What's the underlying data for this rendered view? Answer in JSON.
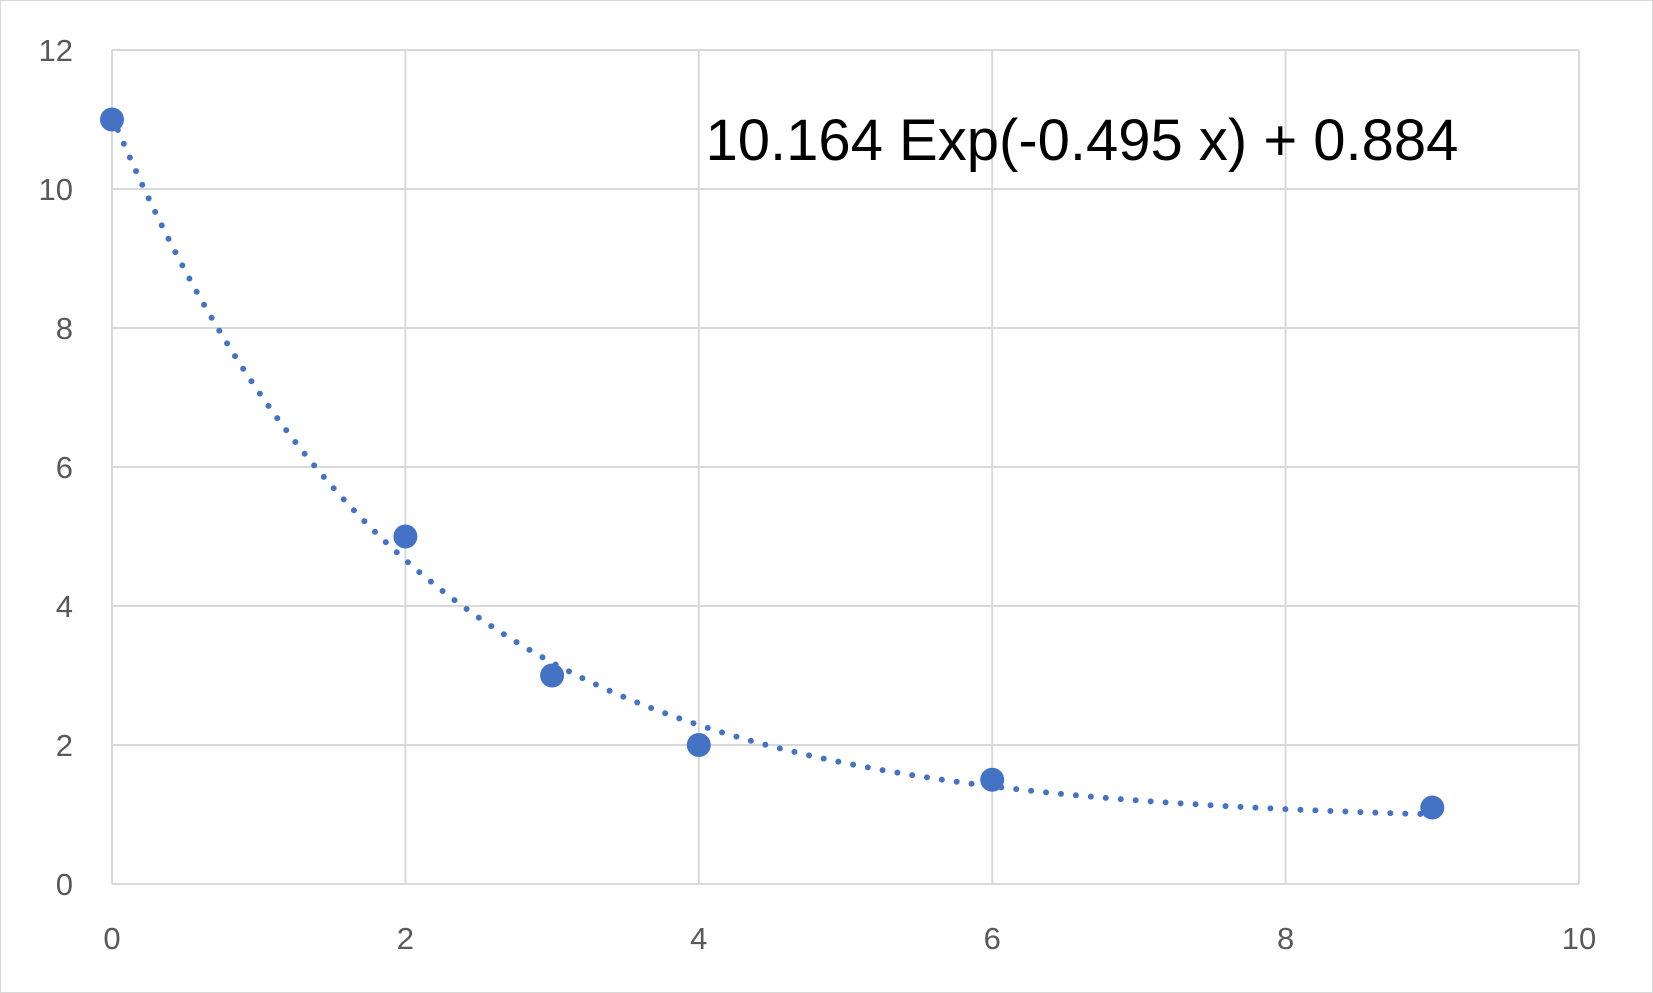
{
  "chart_data": {
    "type": "scatter",
    "title": "",
    "xlabel": "",
    "ylabel": "",
    "xlim": [
      0,
      10
    ],
    "ylim": [
      0,
      12
    ],
    "x_ticks": [
      "0",
      "2",
      "4",
      "6",
      "8",
      "10"
    ],
    "y_ticks": [
      "0",
      "2",
      "4",
      "6",
      "8",
      "10",
      "12"
    ],
    "grid": true,
    "legend": "none",
    "series": [
      {
        "x": [
          0,
          2,
          3,
          4,
          6,
          9
        ],
        "y": [
          11,
          5,
          3,
          2,
          1.5,
          1.1
        ],
        "color": "#4472c4",
        "marker": "circle"
      }
    ],
    "trendline": {
      "type": "exponential",
      "a": 10.164,
      "b": -0.495,
      "c": 0.884,
      "x_range": [
        0,
        9
      ],
      "style": "dotted",
      "color": "#4472c4"
    },
    "annotations": [
      {
        "text": "10.164 Exp(-0.495 x) + 0.884"
      }
    ]
  }
}
